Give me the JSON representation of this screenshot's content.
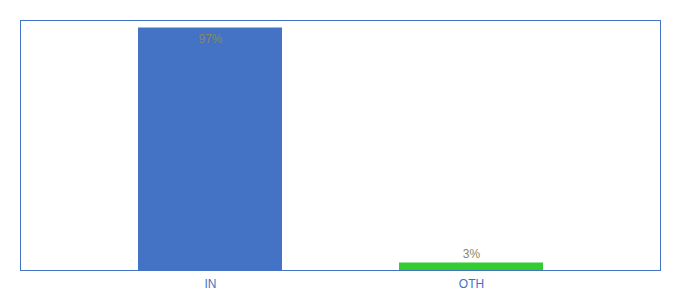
{
  "chart_data": {
    "type": "bar",
    "categories": [
      "IN",
      "OTH"
    ],
    "values": [
      97,
      3
    ],
    "value_labels": [
      "97%",
      "3%"
    ],
    "colors": [
      "#4472c4",
      "#33cc33"
    ],
    "ylim": [
      0,
      100
    ],
    "yticks": [],
    "data_labels": true,
    "tick_labels": "x"
  }
}
